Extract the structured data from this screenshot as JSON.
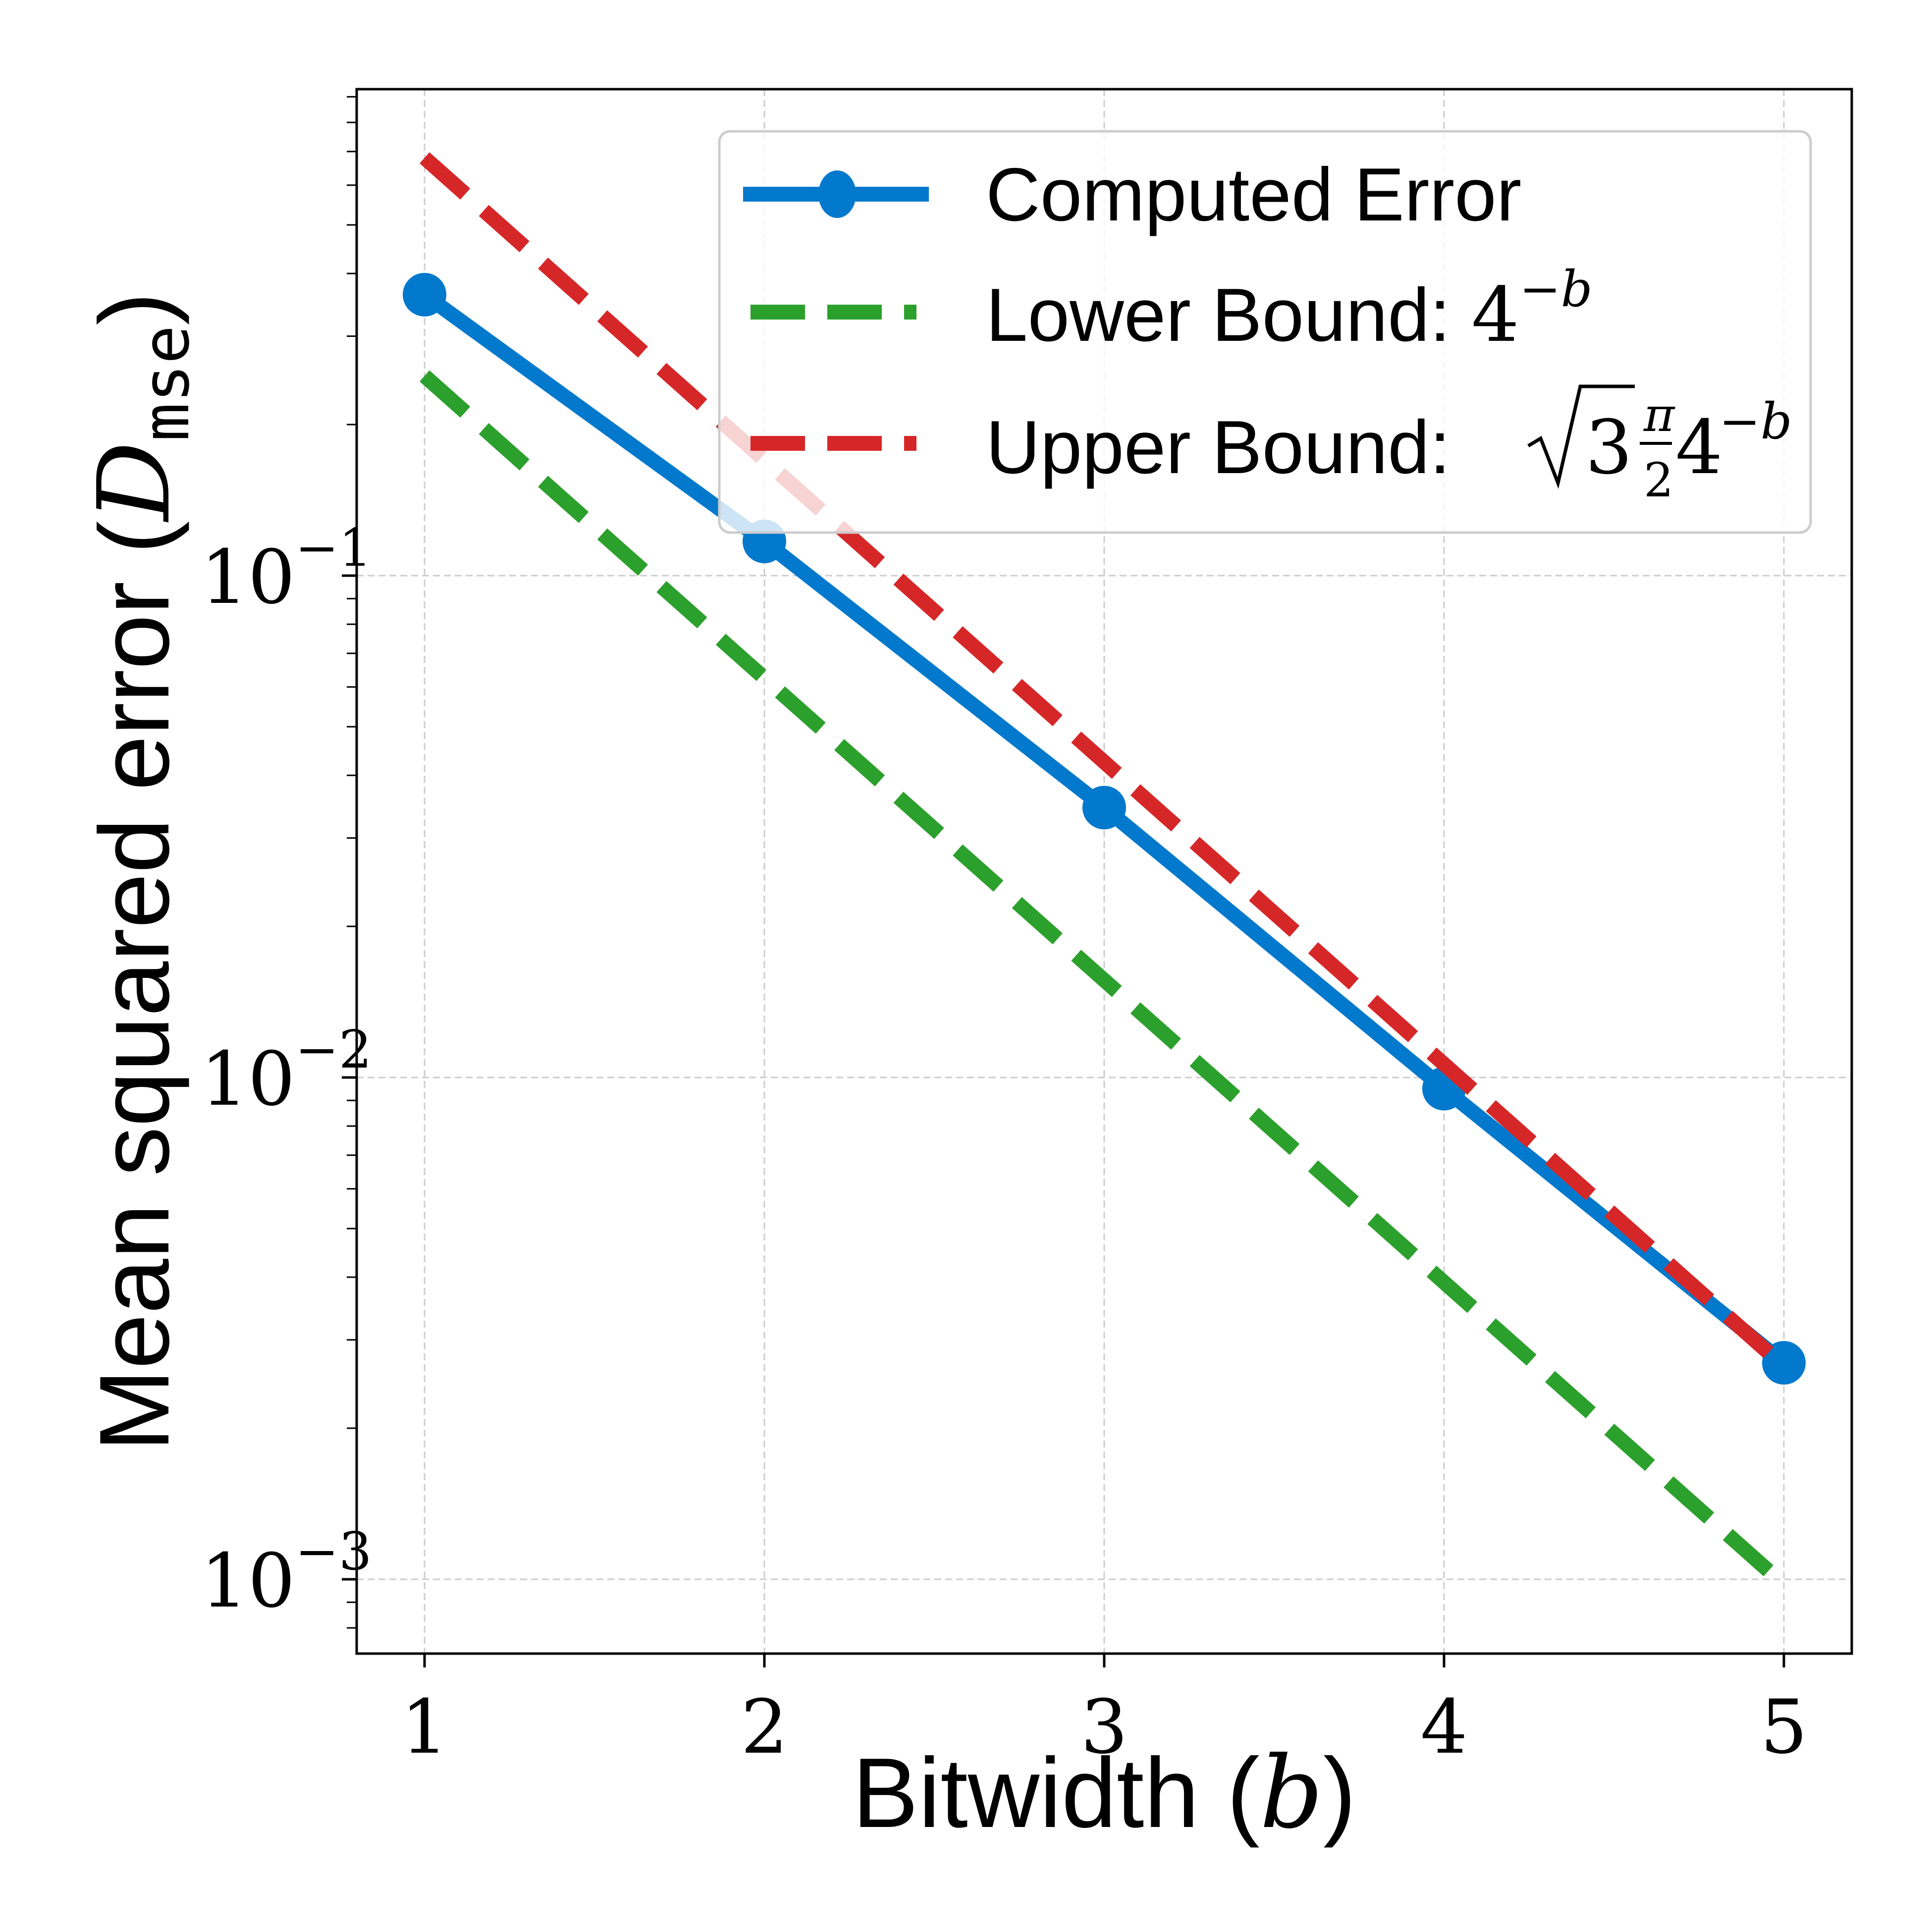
{
  "chart_data": {
    "type": "line",
    "title": "",
    "xlabel": "Bitwidth (b)",
    "ylabel": "Mean squared error (D_mse)",
    "x": [
      1,
      2,
      3,
      4,
      5
    ],
    "xticks": [
      "1",
      "2",
      "3",
      "4",
      "5"
    ],
    "yscale": "log",
    "yticks": [
      {
        "value": 0.1,
        "base": "10",
        "exp": "−1"
      },
      {
        "value": 0.01,
        "base": "10",
        "exp": "−2"
      },
      {
        "value": 0.001,
        "base": "10",
        "exp": "−3"
      }
    ],
    "xlim": [
      0.8,
      5.2
    ],
    "ylim": [
      0.00071,
      0.93
    ],
    "grid": true,
    "legend_position": "upper right",
    "series": [
      {
        "name": "Computed Error",
        "style": "solid-marker",
        "color": "#0279cc",
        "values": [
          0.363,
          0.117,
          0.0345,
          0.0095,
          0.0027
        ]
      },
      {
        "name": "Lower Bound: 4^-b",
        "style": "dashed",
        "color": "#2ca02c",
        "values": [
          0.25,
          0.0625,
          0.015625,
          0.00390625,
          0.0009765625
        ]
      },
      {
        "name": "Upper Bound: √3·π/2·4^-b",
        "style": "dashed",
        "color": "#d62728",
        "values": [
          0.6802,
          0.17,
          0.04251,
          0.01063,
          0.002657
        ]
      }
    ]
  },
  "legend": {
    "items": [
      {
        "text": "Computed Error",
        "math": ""
      },
      {
        "text": "Lower Bound: ",
        "math_base": "4",
        "math_exp": "−b"
      },
      {
        "text": "Upper Bound: ",
        "math_sqrt": "3",
        "math_frac_num": "π",
        "math_frac_den": "2",
        "math_base": "4",
        "math_exp": "−b"
      }
    ]
  },
  "axes": {
    "xlabel_text": "Bitwidth (",
    "xlabel_var": "b",
    "xlabel_close": ")",
    "ylabel_text": "Mean squared error (",
    "ylabel_var": "D",
    "ylabel_sub": "mse",
    "ylabel_close": ")"
  }
}
